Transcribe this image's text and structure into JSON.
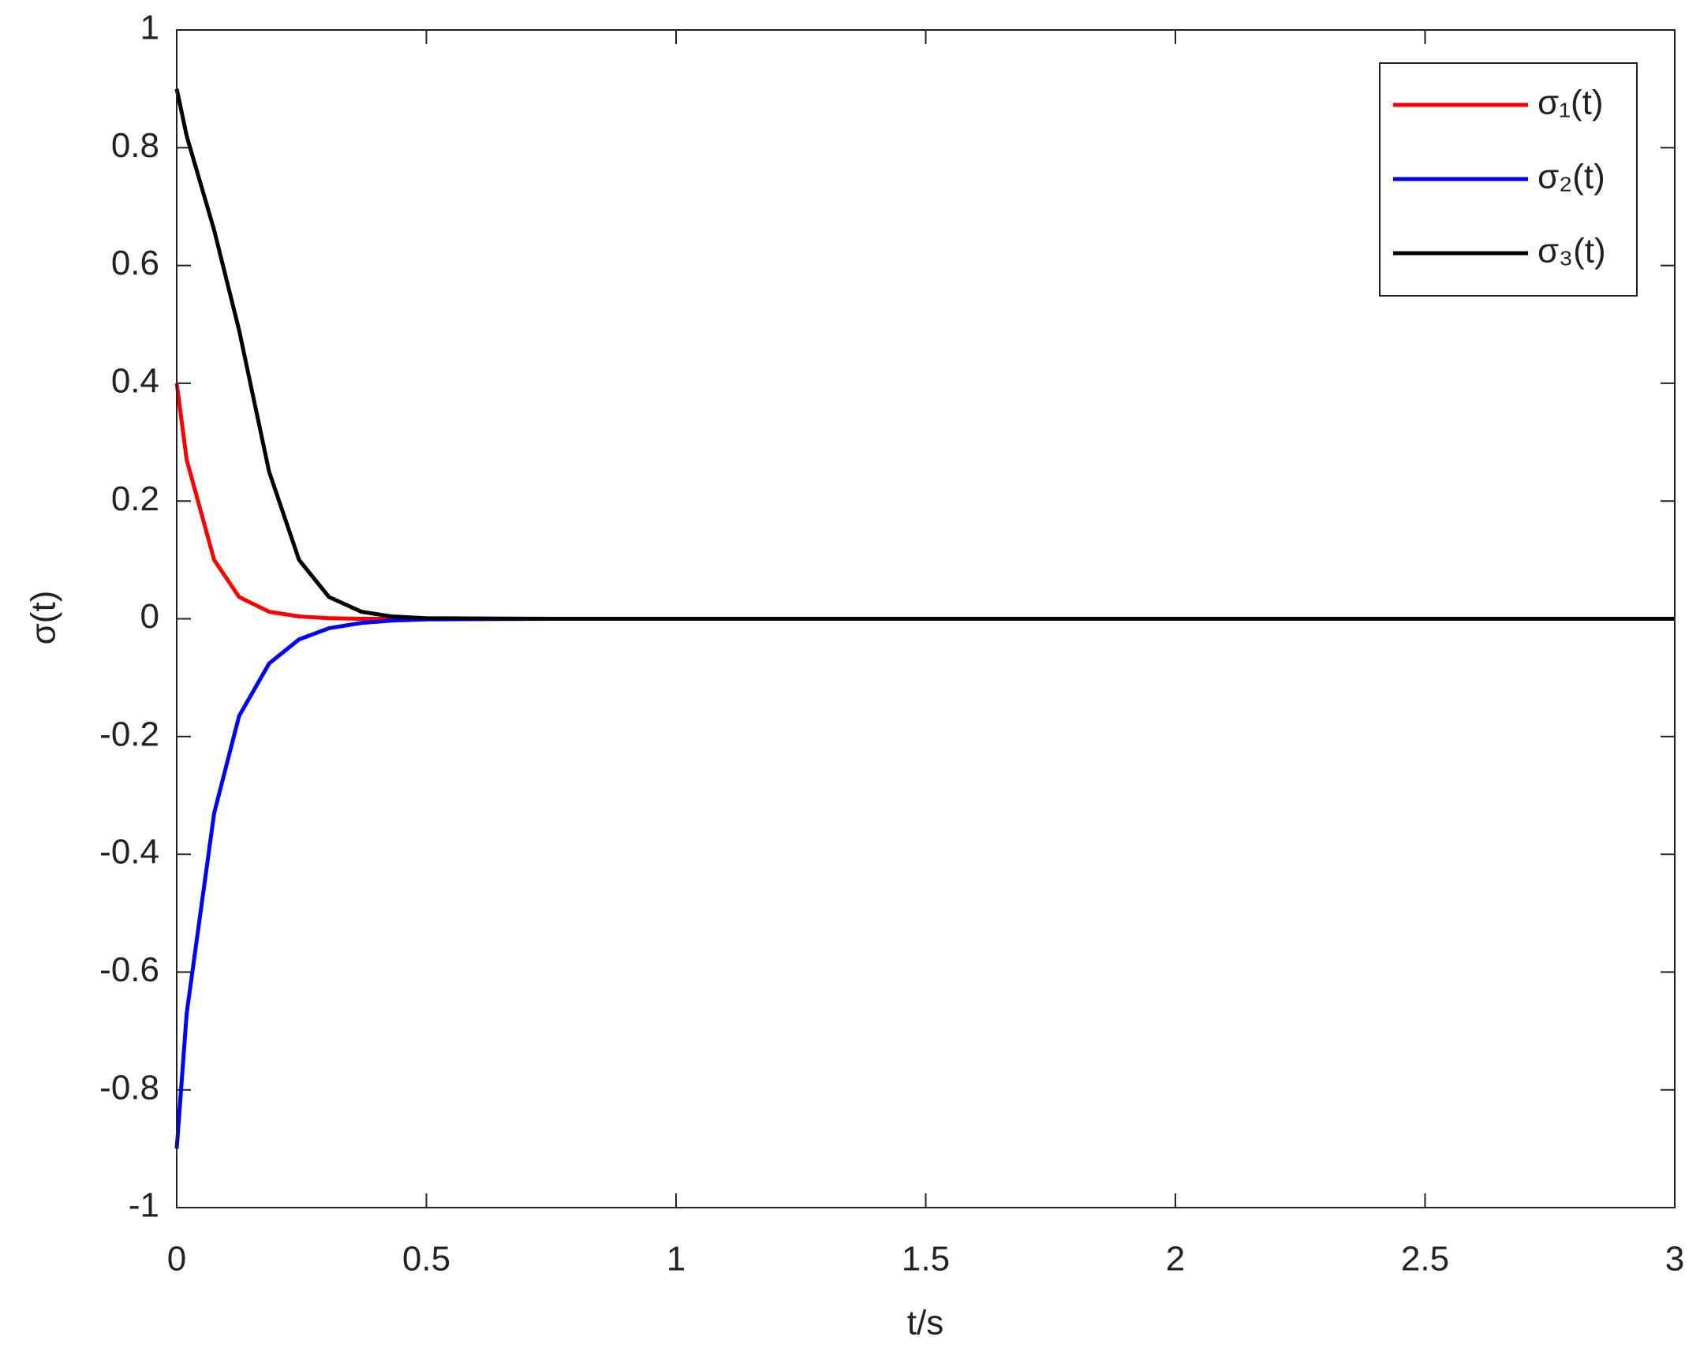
{
  "chart_data": {
    "type": "line",
    "x": [
      0,
      0.02,
      0.075,
      0.125,
      0.185,
      0.245,
      0.305,
      0.37,
      0.43,
      0.5,
      0.75,
      1,
      1.5,
      2,
      2.5,
      3
    ],
    "series": [
      {
        "name": "σ₁(t)",
        "color": "#ff0000",
        "values": [
          0.4,
          0.27,
          0.1,
          0.037,
          0.012,
          0.004,
          0.001,
          0,
          0,
          0,
          0,
          0,
          0,
          0,
          0,
          0
        ]
      },
      {
        "name": "σ₂(t)",
        "color": "#0000ff",
        "values": [
          -0.9,
          -0.67,
          -0.33,
          -0.165,
          -0.076,
          -0.035,
          -0.016,
          -0.007,
          -0.003,
          -0.001,
          0,
          0,
          0,
          0,
          0,
          0
        ]
      },
      {
        "name": "σ₃(t)",
        "color": "#000000",
        "values": [
          0.9,
          0.82,
          0.66,
          0.49,
          0.25,
          0.1,
          0.037,
          0.012,
          0.004,
          0.001,
          0,
          0,
          0,
          0,
          0,
          0
        ]
      }
    ],
    "x_label": "t/s",
    "y_label": "σ(t)",
    "xlim": [
      0,
      3
    ],
    "xticks": [
      0,
      0.5,
      1,
      1.5,
      2,
      2.5,
      3
    ],
    "ylim": [
      -1,
      1
    ],
    "yticks": [
      -1,
      -0.8,
      -0.6,
      -0.4,
      -0.2,
      0,
      0.2,
      0.4,
      0.6,
      0.8,
      1
    ],
    "legend": "top-right",
    "grid": false
  }
}
